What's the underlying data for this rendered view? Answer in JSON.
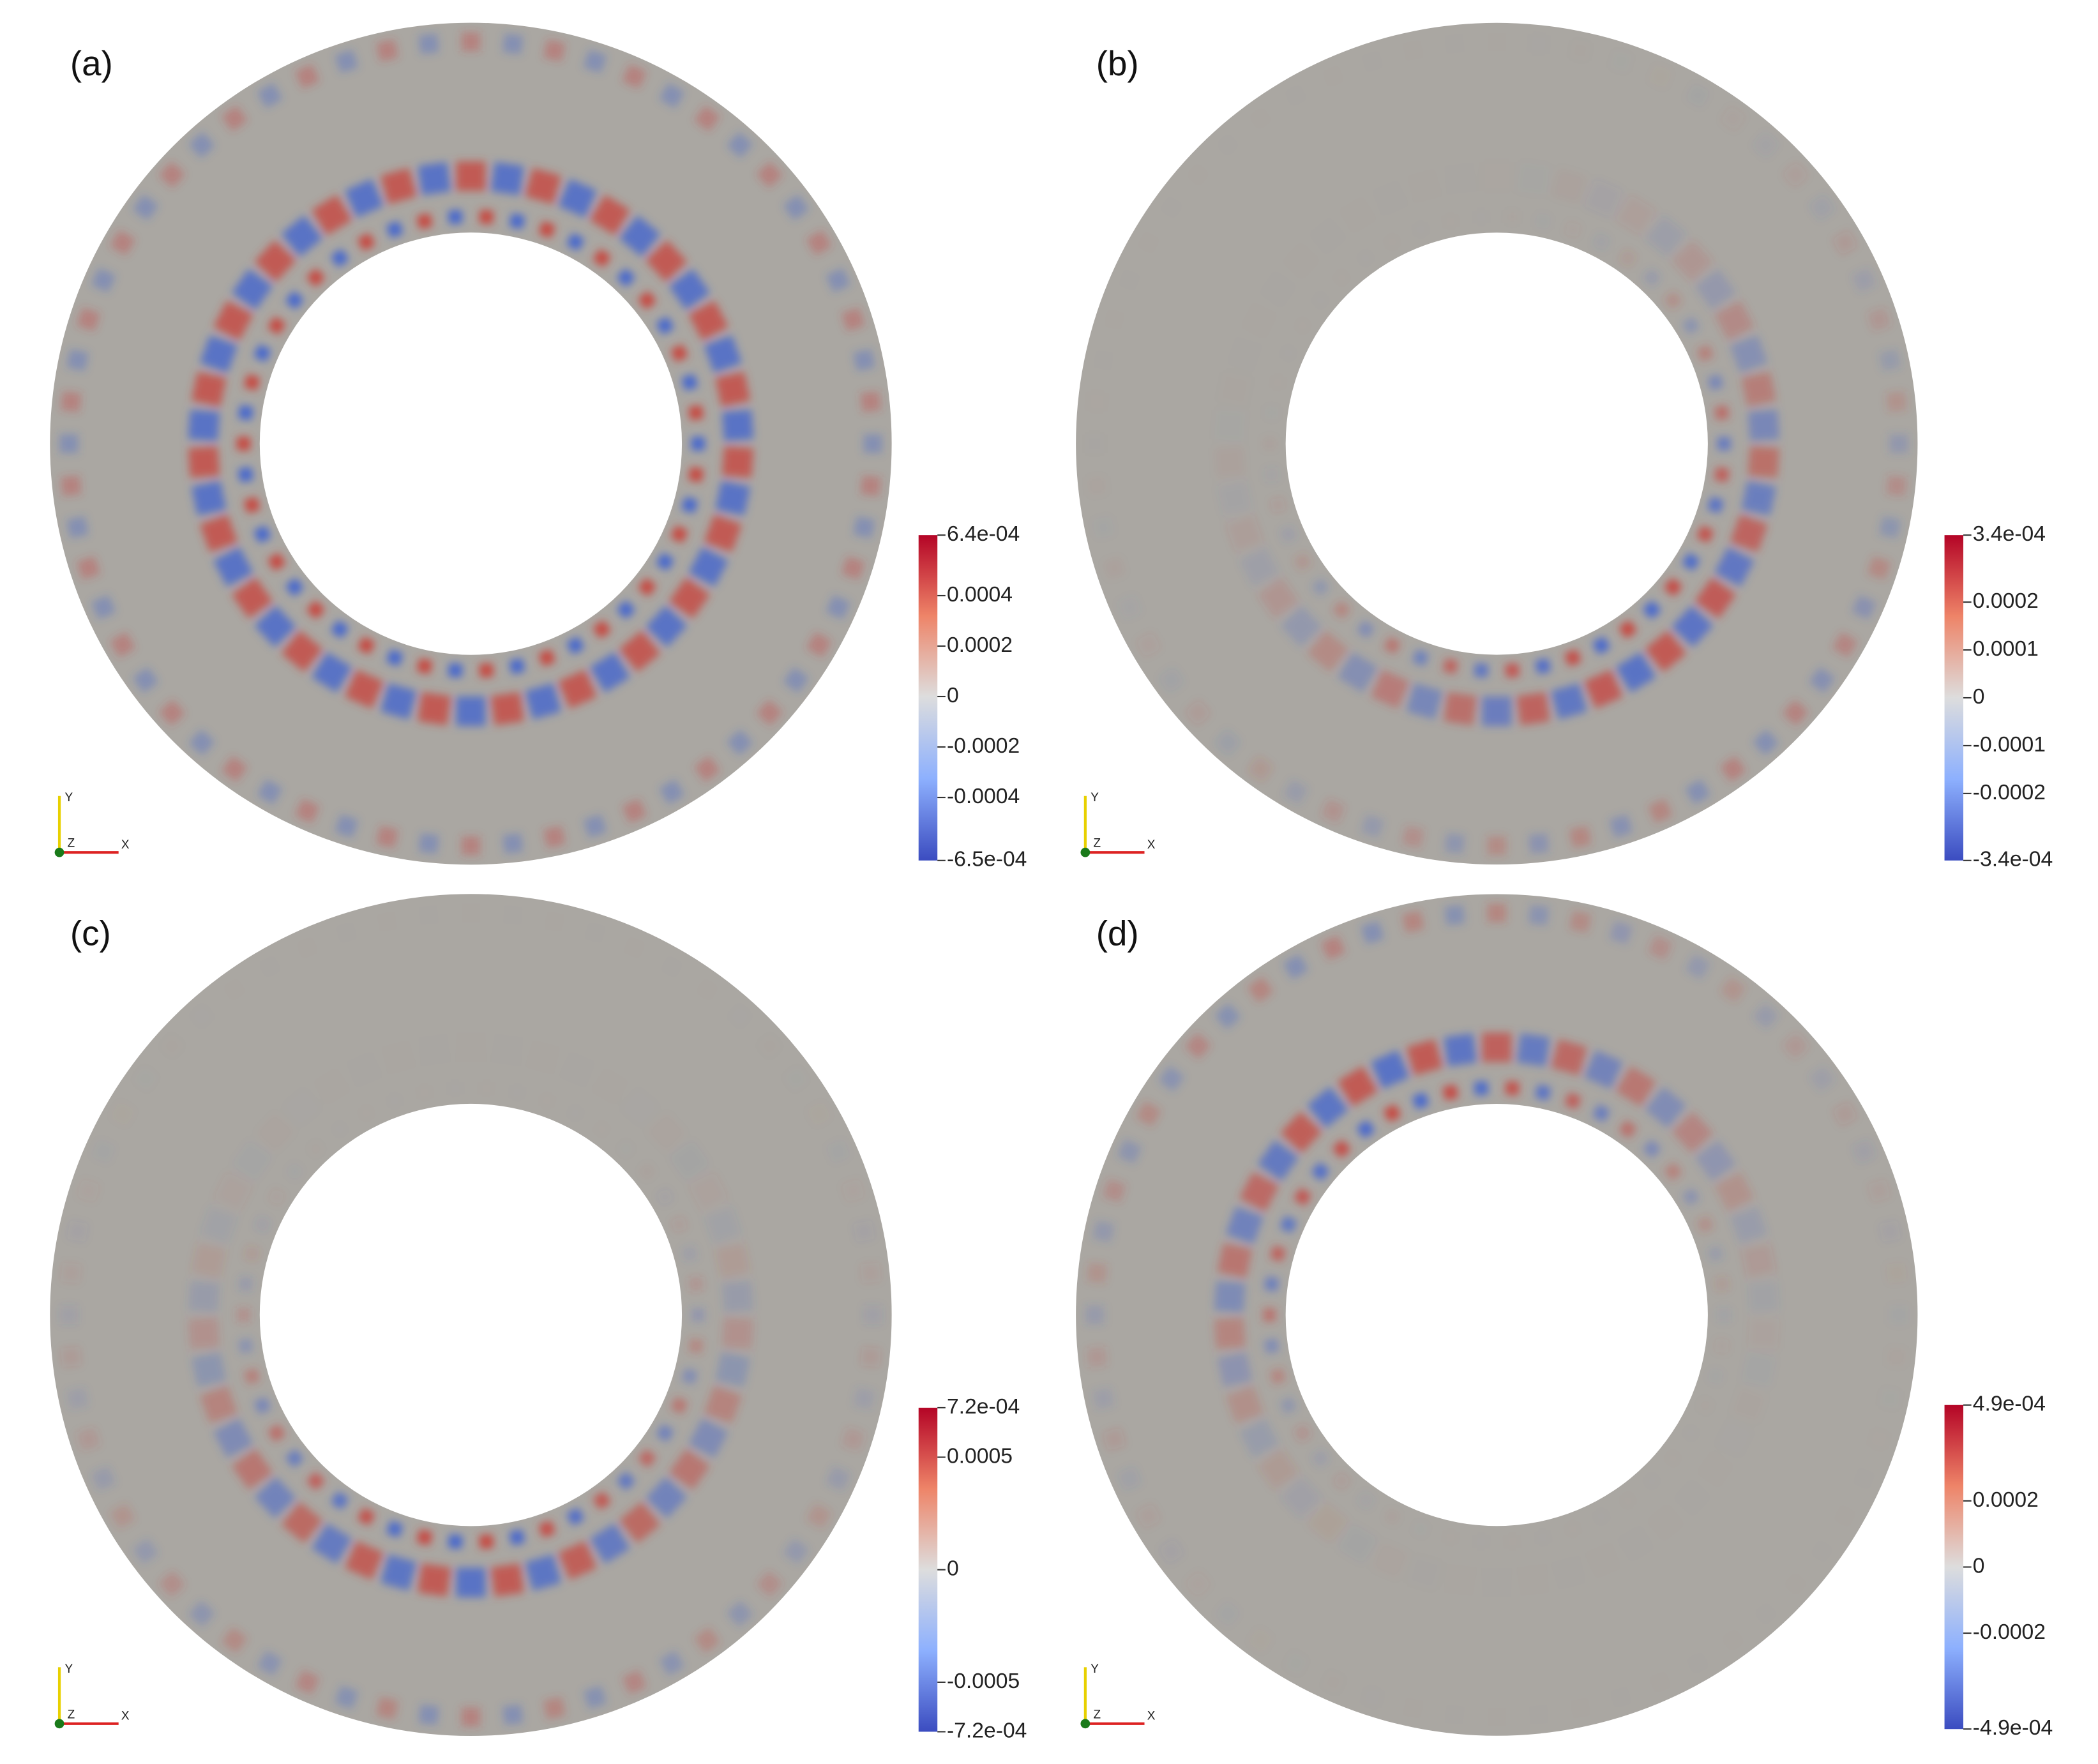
{
  "panels": [
    {
      "label": "(a)",
      "triad": [
        "Y",
        "Z",
        "X"
      ],
      "colorbar": {
        "lim": [
          -0.00065,
          0.00064
        ],
        "ticks": [
          {
            "value": 0.00064,
            "label": "6.4e-04"
          },
          0.0004,
          0.0002,
          0,
          -0.0002,
          -0.0004,
          {
            "value": -0.00065,
            "label": "-6.5e-04"
          }
        ]
      }
    },
    {
      "label": "(b)",
      "triad": [
        "Y",
        "Z",
        "X"
      ],
      "colorbar": {
        "lim": [
          -0.00034,
          0.00034
        ],
        "ticks": [
          {
            "value": 0.00034,
            "label": "3.4e-04"
          },
          0.0002,
          0.0001,
          0,
          -0.0001,
          -0.0002,
          {
            "value": -0.00034,
            "label": "-3.4e-04"
          }
        ]
      }
    },
    {
      "label": "(c)",
      "triad": [
        "Y",
        "Z",
        "X"
      ],
      "colorbar": {
        "lim": [
          -0.00072,
          0.00072
        ],
        "ticks": [
          {
            "value": 0.00072,
            "label": "7.2e-04"
          },
          0.0005,
          0,
          -0.0005,
          {
            "value": -0.00072,
            "label": "-7.2e-04"
          }
        ]
      }
    },
    {
      "label": "(d)",
      "triad": [
        "Y",
        "Z",
        "X"
      ],
      "colorbar": {
        "lim": [
          -0.00049,
          0.00049
        ],
        "ticks": [
          {
            "value": 0.00049,
            "label": "4.9e-04"
          },
          0.0002,
          0,
          -0.0002,
          {
            "value": -0.00049,
            "label": "-4.9e-04"
          }
        ]
      }
    }
  ]
}
